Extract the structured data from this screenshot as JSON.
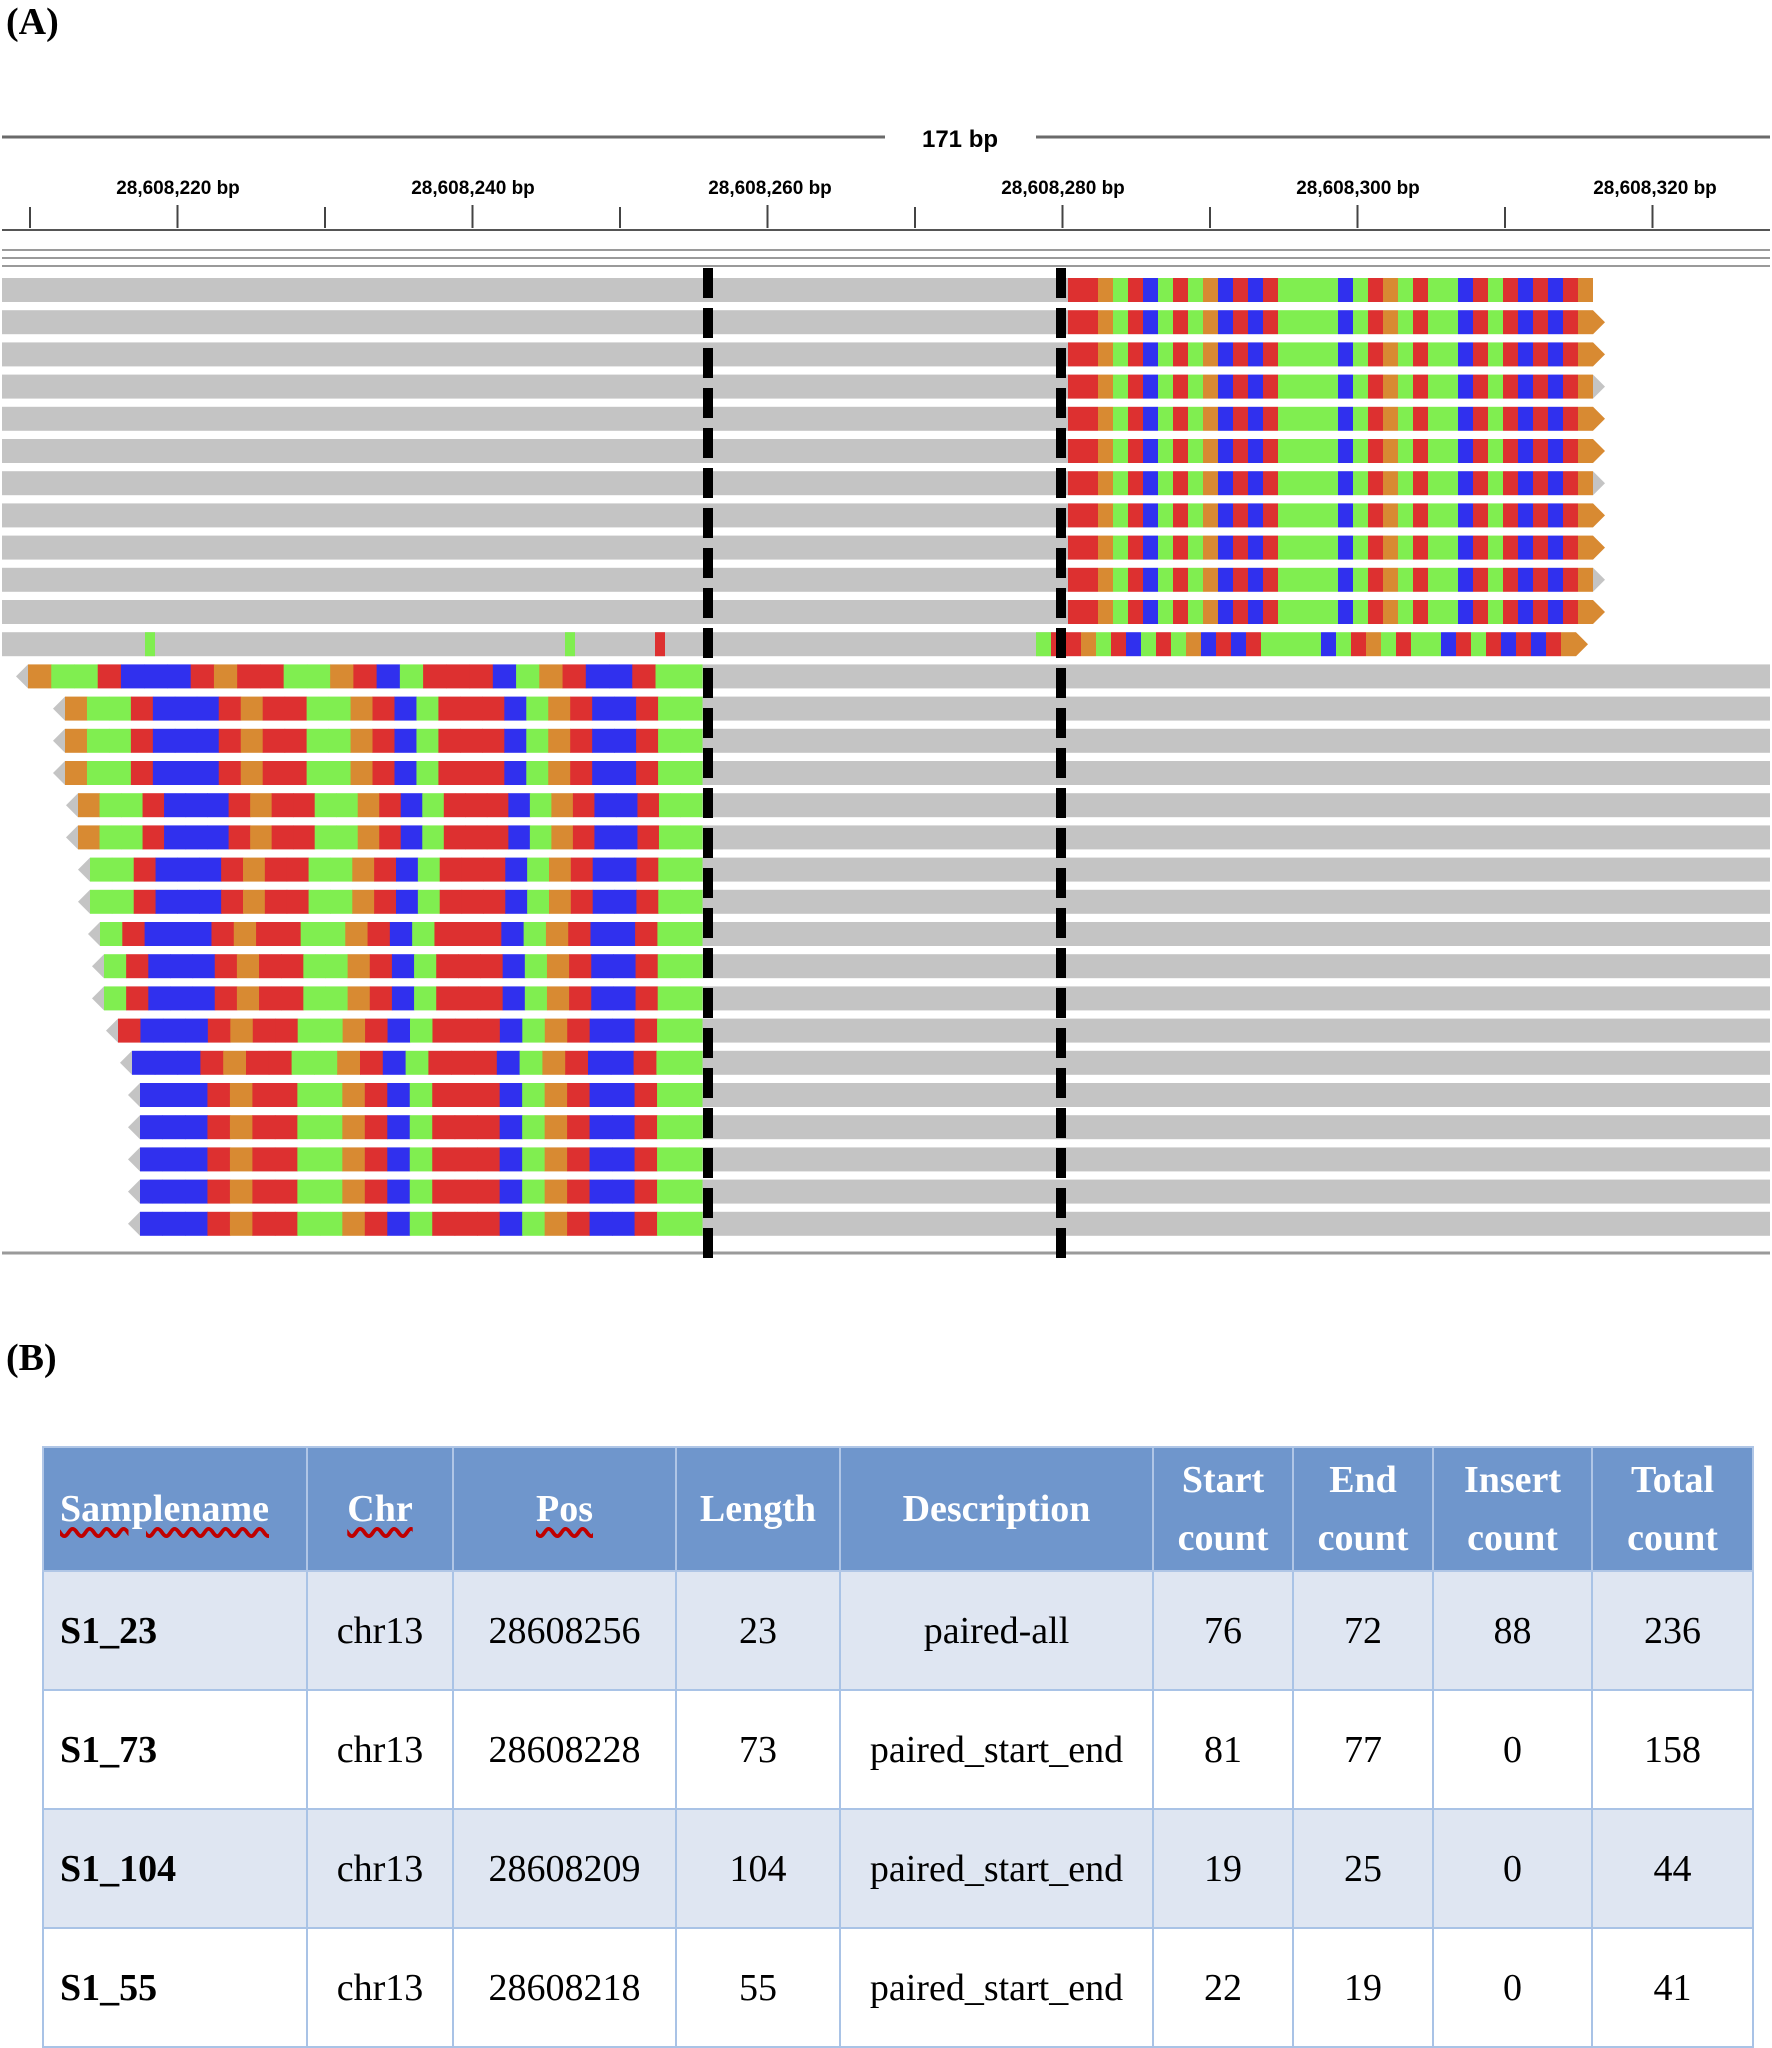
{
  "panel_a_label": "(A)",
  "panel_b_label": "(B)",
  "igv": {
    "span_label": "171 bp",
    "ticks": [
      "28,608,220 bp",
      "28,608,240 bp",
      "28,608,260 bp",
      "28,608,280 bp",
      "28,608,300 bp",
      "28,608,320 bp"
    ],
    "colors": {
      "read": "#c4c4c4",
      "A": "#80ee50",
      "C": "#3030ee",
      "G": "#d88a32",
      "T": "#dd3030",
      "breakpoint": "#000000"
    }
  },
  "table": {
    "headers": [
      [
        "Samplename"
      ],
      [
        "Chr"
      ],
      [
        "Pos"
      ],
      [
        "Length"
      ],
      [
        "Description"
      ],
      [
        "Start",
        "count"
      ],
      [
        "End",
        "count"
      ],
      [
        "Insert",
        "count"
      ],
      [
        "Total",
        "count"
      ]
    ],
    "rows": [
      [
        "S1_23",
        "chr13",
        "28608256",
        "23",
        "paired-all",
        "76",
        "72",
        "88",
        "236"
      ],
      [
        "S1_73",
        "chr13",
        "28608228",
        "73",
        "paired_start_end",
        "81",
        "77",
        "0",
        "158"
      ],
      [
        "S1_104",
        "chr13",
        "28608209",
        "104",
        "paired_start_end",
        "19",
        "25",
        "0",
        "44"
      ],
      [
        "S1_55",
        "chr13",
        "28608218",
        "55",
        "paired_start_end",
        "22",
        "19",
        "0",
        "41"
      ]
    ]
  }
}
